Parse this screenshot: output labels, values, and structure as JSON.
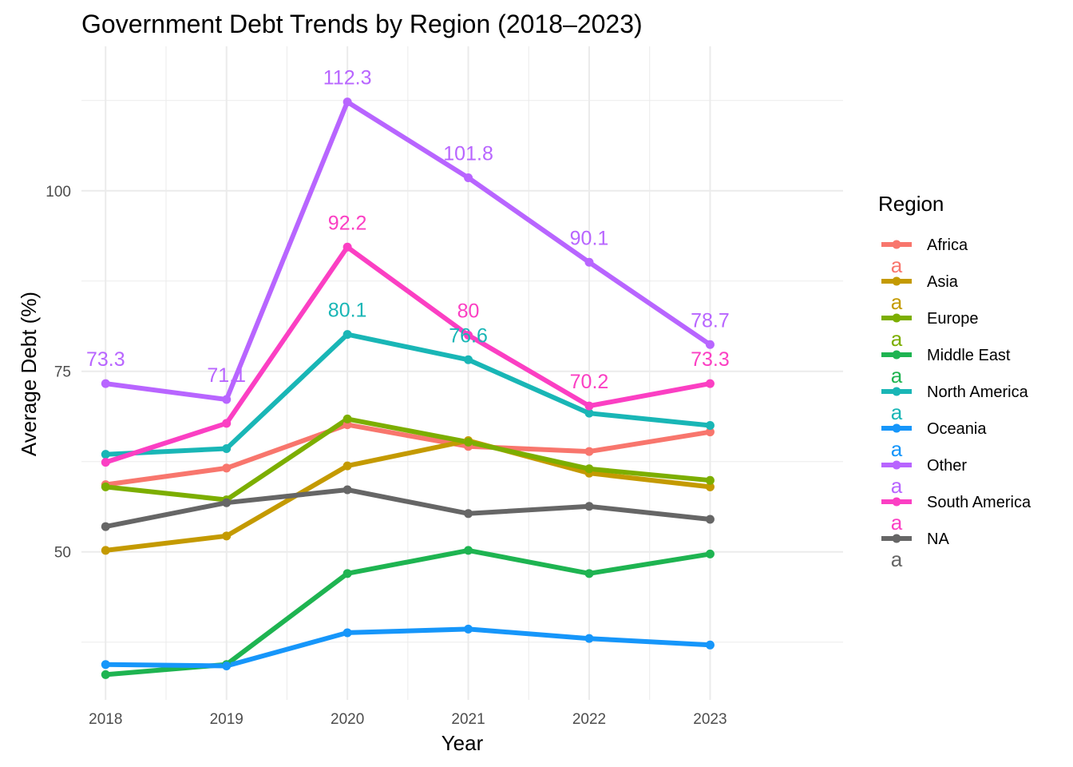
{
  "chart_data": {
    "type": "line",
    "title": "Government Debt Trends by Region (2018–2023)",
    "xlabel": "Year",
    "ylabel": "Average Debt (%)",
    "x": [
      2018,
      2019,
      2020,
      2021,
      2022,
      2023
    ],
    "x_tick_labels": [
      "2018",
      "2019",
      "2020",
      "2021",
      "2022",
      "2023"
    ],
    "y_ticks": [
      50,
      75,
      100
    ],
    "y_tick_labels": [
      "50",
      "75",
      "100"
    ],
    "ylim": [
      29.5,
      120
    ],
    "xlim": [
      2017.8,
      2024.1
    ],
    "grid": true,
    "legend": {
      "title": "Region",
      "position": "right",
      "key_letter": "a"
    },
    "series": [
      {
        "name": "Africa",
        "color": "#F8766D",
        "values": [
          59.3,
          61.6,
          67.6,
          64.6,
          63.9,
          66.6
        ]
      },
      {
        "name": "Asia",
        "color": "#C49A00",
        "values": [
          50.2,
          52.2,
          61.9,
          65.4,
          60.9,
          59.0
        ]
      },
      {
        "name": "Europe",
        "color": "#7CAE00",
        "values": [
          59.0,
          57.2,
          68.4,
          65.2,
          61.5,
          59.9
        ]
      },
      {
        "name": "Middle East",
        "color": "#1EB451",
        "values": [
          33.0,
          34.4,
          47.0,
          50.2,
          47.0,
          49.7
        ]
      },
      {
        "name": "North America",
        "color": "#19B6B6",
        "values": [
          63.5,
          64.3,
          80.1,
          76.6,
          69.2,
          67.5
        ]
      },
      {
        "name": "Oceania",
        "color": "#1696FA",
        "values": [
          34.4,
          34.2,
          38.8,
          39.3,
          38.0,
          37.1
        ]
      },
      {
        "name": "Other",
        "color": "#B865FF",
        "values": [
          73.3,
          71.1,
          112.3,
          101.8,
          90.1,
          78.7
        ]
      },
      {
        "name": "South America",
        "color": "#FB3FC3",
        "values": [
          62.4,
          67.8,
          92.2,
          80.0,
          70.2,
          73.3
        ]
      },
      {
        "name": "NA",
        "color": "#666666",
        "values": [
          53.5,
          56.8,
          58.6,
          55.3,
          56.3,
          54.5
        ]
      }
    ],
    "annotations": [
      {
        "series": "Other",
        "x": 2018,
        "y": 73.3,
        "label": "73.3"
      },
      {
        "series": "Other",
        "x": 2019,
        "y": 71.1,
        "label": "71.1"
      },
      {
        "series": "Other",
        "x": 2020,
        "y": 112.3,
        "label": "112.3"
      },
      {
        "series": "Other",
        "x": 2021,
        "y": 101.8,
        "label": "101.8"
      },
      {
        "series": "Other",
        "x": 2022,
        "y": 90.1,
        "label": "90.1"
      },
      {
        "series": "Other",
        "x": 2023,
        "y": 78.7,
        "label": "78.7"
      },
      {
        "series": "South America",
        "x": 2020,
        "y": 92.2,
        "label": "92.2"
      },
      {
        "series": "South America",
        "x": 2021,
        "y": 80.0,
        "label": "80"
      },
      {
        "series": "South America",
        "x": 2022,
        "y": 70.2,
        "label": "70.2"
      },
      {
        "series": "South America",
        "x": 2023,
        "y": 73.3,
        "label": "73.3"
      },
      {
        "series": "North America",
        "x": 2020,
        "y": 80.1,
        "label": "80.1"
      },
      {
        "series": "North America",
        "x": 2021,
        "y": 76.6,
        "label": "76.6"
      }
    ]
  }
}
